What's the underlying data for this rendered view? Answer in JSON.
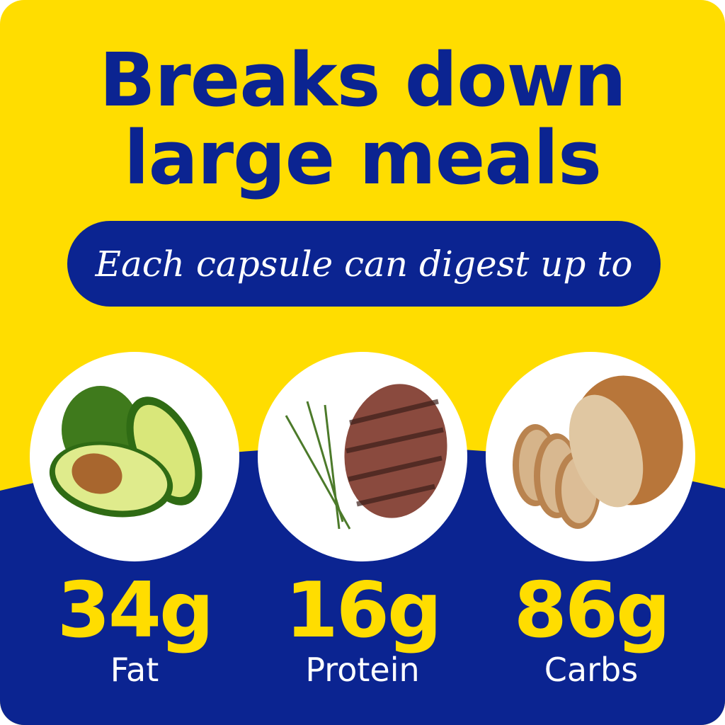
{
  "headline": {
    "line1": "Breaks down",
    "line2": "large meals"
  },
  "subheadline": "Each capsule can digest up to",
  "nutrients": [
    {
      "amount": "34g",
      "label": "Fat",
      "image": "avocado"
    },
    {
      "amount": "16g",
      "label": "Protein",
      "image": "grilled-steak-with-rosemary"
    },
    {
      "amount": "86g",
      "label": "Carbs",
      "image": "sliced-bread-loaf"
    }
  ],
  "colors": {
    "yellow": "#FFDD00",
    "blue": "#0B2491",
    "white": "#FFFFFF"
  }
}
